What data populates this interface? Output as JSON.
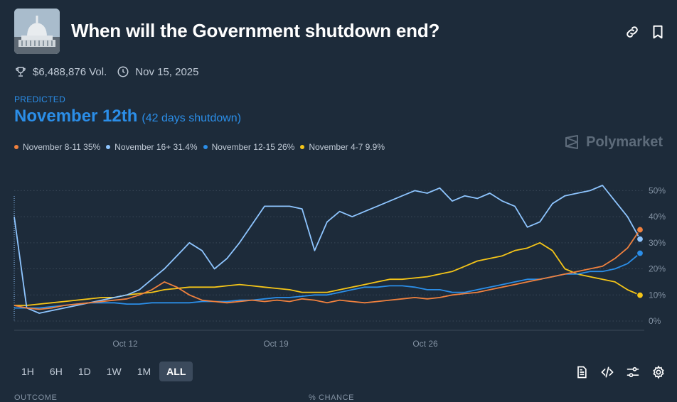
{
  "market": {
    "title": "When will the Government shutdown end?",
    "volume": "$6,488,876 Vol.",
    "end_date": "Nov 15, 2025"
  },
  "icons": {
    "thumbnail": "capitol-building-image",
    "link": "link-icon",
    "bookmark": "bookmark-icon",
    "volume": "trophy-icon",
    "date": "clock-icon"
  },
  "predicted": {
    "label": "PREDICTED",
    "outcome": "November 12th",
    "detail": "(42 days shutdown)"
  },
  "brand": "Polymarket",
  "legend": [
    {
      "label": "November 8-11 35%",
      "color": "#f0813e"
    },
    {
      "label": "November 16+ 31.4%",
      "color": "#8ec5ff"
    },
    {
      "label": "November 12-15 26%",
      "color": "#2b8ee8"
    },
    {
      "label": "November 4-7 9.9%",
      "color": "#f5c518"
    }
  ],
  "time_ranges": {
    "items": [
      "1H",
      "6H",
      "1D",
      "1W",
      "1M",
      "ALL"
    ],
    "selected": "ALL"
  },
  "tools": [
    "document-icon",
    "embed-code-icon",
    "sliders-icon",
    "settings-icon"
  ],
  "table_header": {
    "outcome": "OUTCOME",
    "change": "% CHANCE"
  },
  "chart_data": {
    "type": "line",
    "x_tick_labels": [
      "Oct 12",
      "Oct 19",
      "Oct 26"
    ],
    "y_tick_labels": [
      "50%",
      "40%",
      "30%",
      "20%",
      "10%",
      "0%"
    ],
    "ylim": [
      0,
      55
    ],
    "grid": true,
    "legend_position": "top-left",
    "x": [
      0,
      2,
      4,
      6,
      8,
      10,
      12,
      14,
      16,
      18,
      20,
      22,
      24,
      26,
      28,
      30,
      32,
      34,
      36,
      38,
      40,
      42,
      44,
      46,
      48,
      50,
      52,
      54,
      56,
      58,
      60,
      62,
      64,
      66,
      68,
      70,
      72,
      74,
      76,
      78,
      80,
      82,
      84,
      86,
      88,
      90,
      92,
      94,
      96,
      98,
      100
    ],
    "series": [
      {
        "name": "November 8-11",
        "color": "#f0813e",
        "values": [
          6,
          5,
          4.5,
          5,
          6,
          6.5,
          7,
          7.5,
          8,
          8.5,
          10,
          12,
          15,
          13,
          10,
          8,
          7.5,
          7,
          7.5,
          8,
          7.5,
          8,
          7.5,
          8.5,
          8,
          7,
          8,
          7.5,
          7,
          7.5,
          8,
          8.5,
          9,
          8.5,
          9,
          10,
          10.5,
          11,
          12,
          13,
          14,
          15,
          16,
          17,
          18,
          19,
          20,
          21,
          24,
          28,
          35
        ]
      },
      {
        "name": "November 16+",
        "color": "#8ec5ff",
        "values": [
          40,
          5,
          3,
          4,
          5,
          6,
          7,
          8,
          9,
          10,
          12,
          16,
          20,
          25,
          30,
          27,
          20,
          24,
          30,
          37,
          44,
          44,
          44,
          43,
          27,
          38,
          42,
          40,
          42,
          44,
          46,
          48,
          50,
          49,
          51,
          46,
          48,
          47,
          49,
          46,
          44,
          36,
          38,
          45,
          48,
          49,
          50,
          52,
          46,
          40,
          31.4
        ]
      },
      {
        "name": "November 12-15",
        "color": "#2b8ee8",
        "values": [
          5,
          5,
          5,
          5.5,
          6,
          6.5,
          7,
          7,
          7,
          6.5,
          6.5,
          7,
          7,
          7,
          7,
          7.5,
          7.5,
          7.5,
          8,
          8,
          8.5,
          9,
          9,
          9.5,
          10,
          10,
          11,
          12,
          13,
          13,
          13.5,
          13.5,
          13,
          12,
          12,
          11,
          11,
          12,
          13,
          14,
          15,
          16,
          16,
          17,
          18,
          18,
          19,
          19,
          20,
          22,
          26
        ]
      },
      {
        "name": "November 4-7",
        "color": "#f5c518",
        "values": [
          6,
          6,
          6.5,
          7,
          7.5,
          8,
          8.5,
          9,
          9,
          10,
          10.5,
          11,
          12,
          12.5,
          13,
          13,
          13,
          13.5,
          14,
          13.5,
          13,
          12.5,
          12,
          11,
          11,
          11,
          12,
          13,
          14,
          15,
          16,
          16,
          16.5,
          17,
          18,
          19,
          21,
          23,
          24,
          25,
          27,
          28,
          30,
          27,
          20,
          18,
          17,
          16,
          15,
          12,
          9.9
        ]
      }
    ]
  }
}
